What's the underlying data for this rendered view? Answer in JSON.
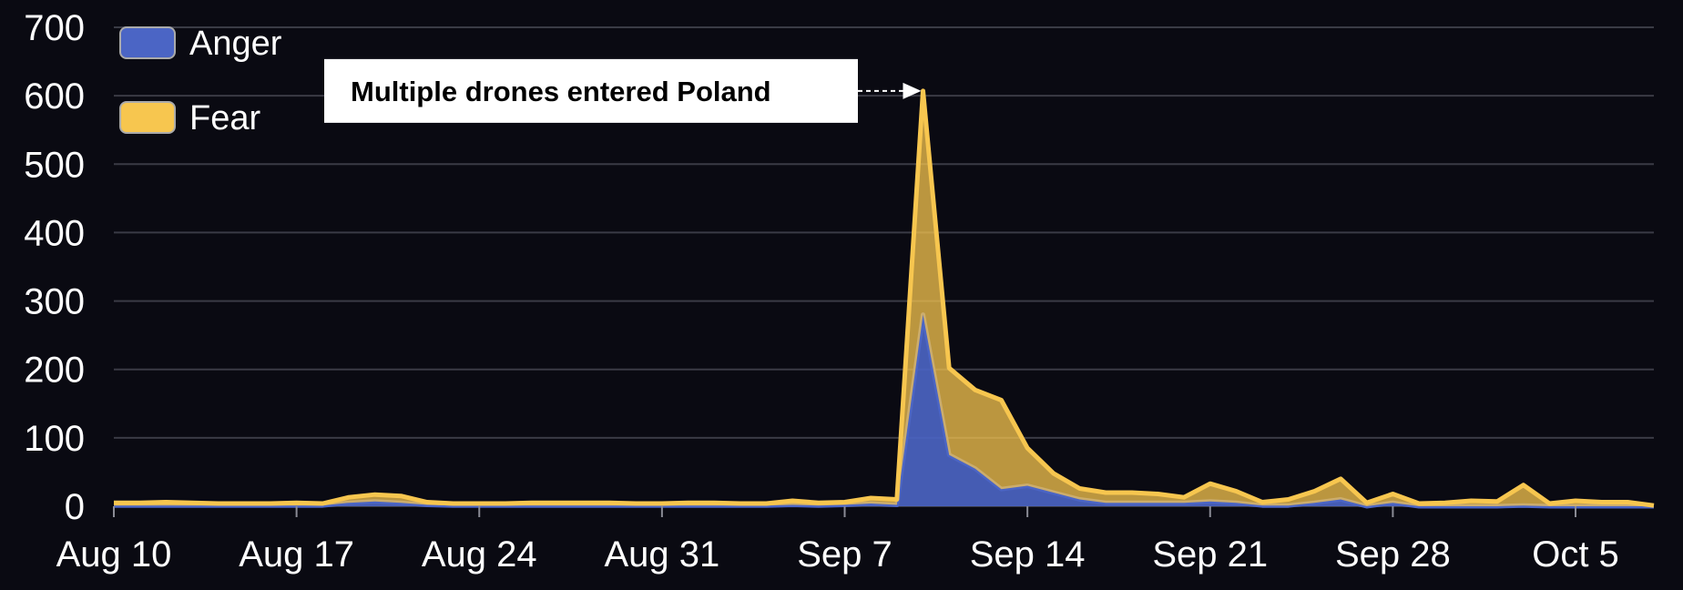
{
  "chart_data": {
    "type": "area",
    "stacked": true,
    "title": "",
    "xlabel": "",
    "ylabel": "",
    "ylim": [
      0,
      700
    ],
    "yticks": [
      0,
      100,
      200,
      300,
      400,
      500,
      600,
      700
    ],
    "grid": true,
    "legend_position": "top-left",
    "xtick_labels": [
      "Aug 10",
      "Aug 17",
      "Aug 24",
      "Aug 31",
      "Sep 7",
      "Sep 14",
      "Sep 21",
      "Sep 28",
      "Oct 5"
    ],
    "x": [
      "2025-08-10",
      "2025-08-11",
      "2025-08-12",
      "2025-08-13",
      "2025-08-14",
      "2025-08-15",
      "2025-08-16",
      "2025-08-17",
      "2025-08-18",
      "2025-08-19",
      "2025-08-20",
      "2025-08-21",
      "2025-08-22",
      "2025-08-23",
      "2025-08-24",
      "2025-08-25",
      "2025-08-26",
      "2025-08-27",
      "2025-08-28",
      "2025-08-29",
      "2025-08-30",
      "2025-08-31",
      "2025-09-01",
      "2025-09-02",
      "2025-09-03",
      "2025-09-04",
      "2025-09-05",
      "2025-09-06",
      "2025-09-07",
      "2025-09-08",
      "2025-09-09",
      "2025-09-10",
      "2025-09-11",
      "2025-09-12",
      "2025-09-13",
      "2025-09-14",
      "2025-09-15",
      "2025-09-16",
      "2025-09-17",
      "2025-09-18",
      "2025-09-19",
      "2025-09-20",
      "2025-09-21",
      "2025-09-22",
      "2025-09-23",
      "2025-09-24",
      "2025-09-25",
      "2025-09-26",
      "2025-09-27",
      "2025-09-28",
      "2025-09-29",
      "2025-09-30",
      "2025-10-01",
      "2025-10-02",
      "2025-10-03",
      "2025-10-04",
      "2025-10-05",
      "2025-10-06",
      "2025-10-07",
      "2025-10-08"
    ],
    "series": [
      {
        "name": "Anger",
        "color": "#4b65c5",
        "values": [
          1,
          1,
          1,
          1,
          1,
          1,
          1,
          1,
          1,
          5,
          7,
          5,
          2,
          1,
          1,
          1,
          1,
          1,
          1,
          1,
          1,
          1,
          1,
          1,
          1,
          1,
          2,
          1,
          2,
          4,
          2,
          280,
          75,
          55,
          25,
          30,
          20,
          10,
          5,
          5,
          5,
          5,
          7,
          5,
          1,
          1,
          5,
          10,
          0,
          5,
          0,
          0,
          0,
          0,
          1,
          0,
          0,
          0,
          0,
          0
        ]
      },
      {
        "name": "Fear",
        "color": "#f7c64f",
        "values": [
          4,
          4,
          5,
          4,
          3,
          3,
          3,
          4,
          3,
          8,
          10,
          10,
          4,
          3,
          3,
          3,
          4,
          4,
          4,
          4,
          3,
          3,
          4,
          4,
          3,
          3,
          6,
          4,
          4,
          8,
          8,
          327,
          127,
          115,
          130,
          55,
          28,
          16,
          15,
          15,
          13,
          8,
          26,
          17,
          5,
          9,
          17,
          30,
          5,
          13,
          4,
          5,
          8,
          7,
          30,
          4,
          8,
          6,
          6,
          1
        ]
      }
    ],
    "annotations": [
      {
        "text": "Multiple drones entered Poland",
        "x": "2025-09-10",
        "y": 607
      }
    ]
  }
}
